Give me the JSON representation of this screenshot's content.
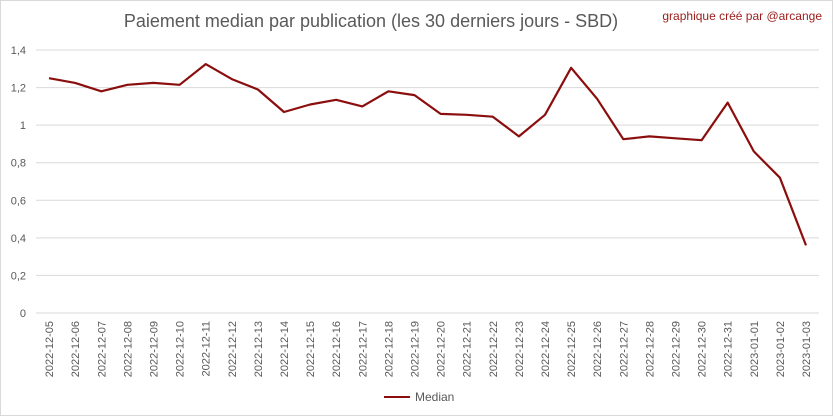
{
  "title": "Paiement median par publication (les 30 derniers jours - SBD)",
  "credit": "graphique créé par @arcange",
  "colors": {
    "series": "#8b0e0e",
    "grid": "#d9d9d9",
    "axis_text": "#595959"
  },
  "chart_data": {
    "type": "line",
    "title": "Paiement median par publication (les 30 derniers jours - SBD)",
    "xlabel": "",
    "ylabel": "",
    "ylim": [
      0,
      1.4
    ],
    "yticks": [
      "0",
      "0,2",
      "0,4",
      "0,6",
      "0,8",
      "1",
      "1,2",
      "1,4"
    ],
    "ytick_values": [
      0,
      0.2,
      0.4,
      0.6,
      0.8,
      1.0,
      1.2,
      1.4
    ],
    "grid": true,
    "legend_position": "bottom",
    "categories": [
      "2022-12-05",
      "2022-12-06",
      "2022-12-07",
      "2022-12-08",
      "2022-12-09",
      "2022-12-10",
      "2022-12-11",
      "2022-12-12",
      "2022-12-13",
      "2022-12-14",
      "2022-12-15",
      "2022-12-16",
      "2022-12-17",
      "2022-12-18",
      "2022-12-19",
      "2022-12-20",
      "2022-12-21",
      "2022-12-22",
      "2022-12-23",
      "2022-12-24",
      "2022-12-25",
      "2022-12-26",
      "2022-12-27",
      "2022-12-28",
      "2022-12-29",
      "2022-12-30",
      "2022-12-31",
      "2023-01-01",
      "2023-01-02",
      "2023-01-03"
    ],
    "series": [
      {
        "name": "Median",
        "values": [
          1.25,
          1.225,
          1.18,
          1.215,
          1.225,
          1.215,
          1.325,
          1.245,
          1.19,
          1.07,
          1.11,
          1.135,
          1.1,
          1.18,
          1.16,
          1.06,
          1.055,
          1.045,
          0.94,
          1.055,
          1.305,
          1.14,
          0.925,
          0.94,
          0.93,
          0.92,
          1.12,
          0.86,
          0.72,
          0.36
        ]
      }
    ]
  }
}
